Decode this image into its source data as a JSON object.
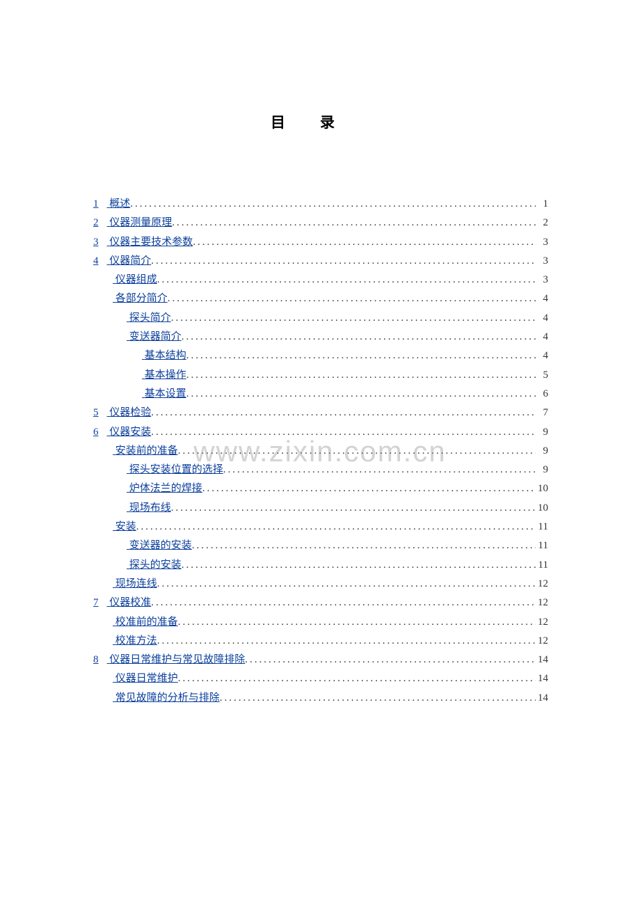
{
  "title": "目录",
  "watermark": "www.zixin.com.cn",
  "colors": {
    "link": "#0b3f9c",
    "text": "#333333",
    "background": "#ffffff",
    "watermark": "rgba(130,130,130,0.35)"
  },
  "toc": [
    {
      "level": 0,
      "num": "1",
      "label": "概述",
      "page": "1"
    },
    {
      "level": 0,
      "num": "2",
      "label": "仪器测量原理",
      "page": "2"
    },
    {
      "level": 0,
      "num": "3",
      "label": "仪器主要技术参数",
      "page": "3"
    },
    {
      "level": 0,
      "num": "4",
      "label": "仪器简介",
      "page": "3"
    },
    {
      "level": 1,
      "num": "",
      "label": "仪器组成",
      "page": "3"
    },
    {
      "level": 1,
      "num": "",
      "label": "各部分简介",
      "page": "4"
    },
    {
      "level": 2,
      "num": "",
      "label": "探头简介",
      "page": "4"
    },
    {
      "level": 2,
      "num": "",
      "label": "变送器简介",
      "page": "4"
    },
    {
      "level": 3,
      "num": "",
      "label": "基本结构",
      "page": "4"
    },
    {
      "level": 3,
      "num": "",
      "label": "基本操作",
      "page": "5"
    },
    {
      "level": 3,
      "num": "",
      "label": "基本设置",
      "page": "6"
    },
    {
      "level": 0,
      "num": "5",
      "label": "仪器检验",
      "page": "7"
    },
    {
      "level": 0,
      "num": "6",
      "label": "仪器安装",
      "page": "9"
    },
    {
      "level": 1,
      "num": "",
      "label": "安装前的准备",
      "page": "9"
    },
    {
      "level": 2,
      "num": "",
      "label": "探头安装位置的选择",
      "page": "9"
    },
    {
      "level": 2,
      "num": "",
      "label": "炉体法兰的焊接",
      "page": "10"
    },
    {
      "level": 2,
      "num": "",
      "label": "现场布线",
      "page": "10"
    },
    {
      "level": 1,
      "num": "",
      "label": "安装",
      "page": "11"
    },
    {
      "level": 2,
      "num": "",
      "label": "变送器的安装",
      "page": "11"
    },
    {
      "level": 2,
      "num": "",
      "label": "探头的安装",
      "page": "11"
    },
    {
      "level": 1,
      "num": "",
      "label": "现场连线",
      "page": "12"
    },
    {
      "level": 0,
      "num": "7",
      "label": "仪器校准",
      "page": "12"
    },
    {
      "level": 1,
      "num": "",
      "label": "校准前的准备",
      "page": "12"
    },
    {
      "level": 1,
      "num": "",
      "label": "校准方法",
      "page": "12"
    },
    {
      "level": 0,
      "num": "8",
      "label": "仪器日常维护与常见故障排除",
      "page": "14"
    },
    {
      "level": 1,
      "num": "",
      "label": "仪器日常维护",
      "page": "14"
    },
    {
      "level": 1,
      "num": "",
      "label": "常见故障的分析与排除",
      "page": "14"
    }
  ]
}
